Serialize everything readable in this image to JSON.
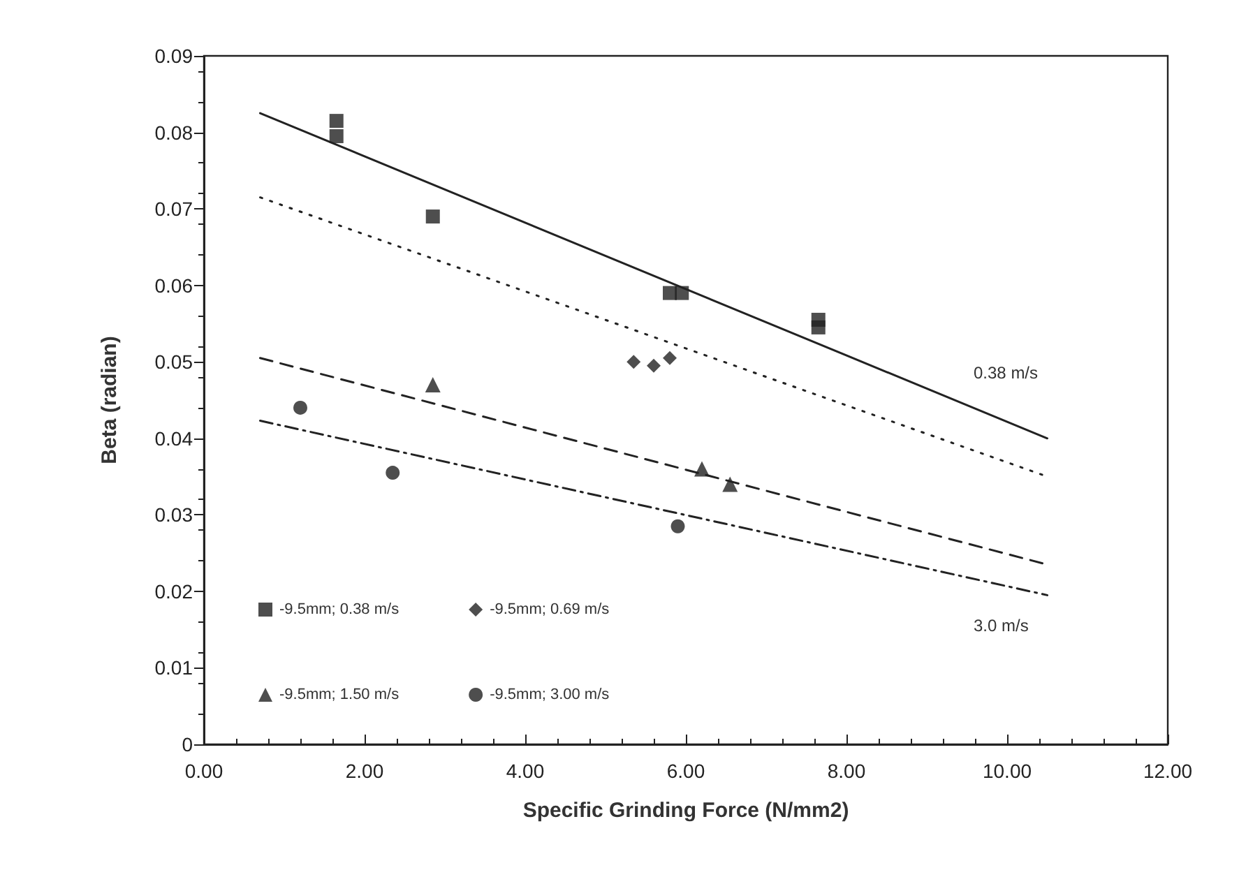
{
  "chart_data": {
    "type": "scatter",
    "xlabel": "Specific Grinding Force (N/mm2)",
    "ylabel": "Beta (radian)",
    "xlim": [
      0,
      12
    ],
    "xticks": [
      {
        "value": 0,
        "label": "0.00"
      },
      {
        "value": 2,
        "label": "2.00"
      },
      {
        "value": 4,
        "label": "4.00"
      },
      {
        "value": 6,
        "label": "6.00"
      },
      {
        "value": 8,
        "label": "8.00"
      },
      {
        "value": 10,
        "label": "10.00"
      },
      {
        "value": 12,
        "label": "12.00"
      }
    ],
    "ylim": [
      0,
      0.09
    ],
    "yticks": [
      0,
      0.01,
      0.02,
      0.03,
      0.04,
      0.05,
      0.06,
      0.07,
      0.08,
      0.09
    ],
    "grid": false,
    "legend": "bottom left",
    "series": [
      {
        "name": "-9.5mm; 0.38 m/s",
        "color": "#222222",
        "marker": "square",
        "x": [
          1.65,
          1.65,
          2.85,
          5.8,
          5.95,
          7.65,
          7.65
        ],
        "values": [
          0.0815,
          0.0795,
          0.069,
          0.059,
          0.059,
          0.0555,
          0.0545
        ]
      },
      {
        "name": "-9.5mm; 0.69 m/s",
        "color": "#222222",
        "marker": "diamond",
        "x": [
          5.35,
          5.6,
          5.8
        ],
        "values": [
          0.05,
          0.0495,
          0.0505
        ]
      },
      {
        "name": "-9.5mm; 1.50 m/s",
        "color": "#222222",
        "marker": "triangle",
        "x": [
          2.85,
          6.2,
          6.55
        ],
        "values": [
          0.047,
          0.036,
          0.034
        ]
      },
      {
        "name": "-9.5mm; 3.00 m/s",
        "color": "#222222",
        "marker": "circle",
        "x": [
          1.2,
          2.35,
          5.9
        ],
        "values": [
          0.044,
          0.0355,
          0.0285
        ]
      },
      {
        "type": "line",
        "color": "#222222",
        "line_style": "solid",
        "marker": "none",
        "x": [
          0.7,
          10.5
        ],
        "values": [
          0.0825,
          0.04
        ]
      },
      {
        "type": "line",
        "color": "#222222",
        "line_style": "dotted",
        "marker": "none",
        "x": [
          0.7,
          10.5
        ],
        "values": [
          0.0715,
          0.035
        ]
      },
      {
        "type": "line",
        "color": "#222222",
        "line_style": "dashed",
        "marker": "none",
        "x": [
          0.7,
          10.5
        ],
        "values": [
          0.0505,
          0.0235
        ]
      },
      {
        "type": "line",
        "color": "#222222",
        "line_style": "dashdot",
        "marker": "none",
        "x": [
          0.7,
          10.5
        ],
        "values": [
          0.0423,
          0.0195
        ]
      }
    ],
    "annotations": [
      "0.38 m/s",
      "3.0 m/s"
    ]
  }
}
